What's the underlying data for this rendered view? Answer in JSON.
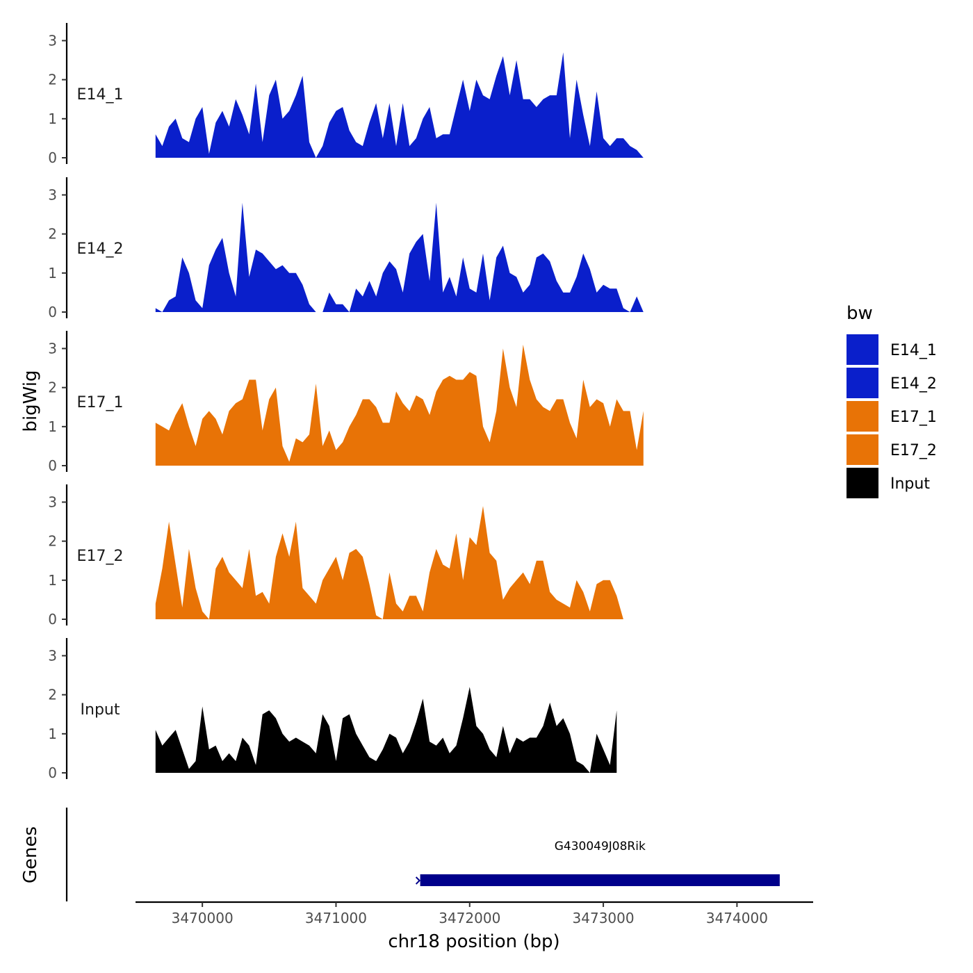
{
  "chart_data": {
    "type": "area",
    "title": "",
    "xlabel": "chr18 position (bp)",
    "ylabel": "bigWig",
    "genes_label": "Genes",
    "xlim": [
      3469500,
      3474570
    ],
    "x_ticks": [
      3470000,
      3471000,
      3472000,
      3473000,
      3474000
    ],
    "x_tick_labels": [
      "3470000",
      "3471000",
      "3472000",
      "3473000",
      "3474000"
    ],
    "ylim": [
      0,
      3.4
    ],
    "y_ticks": [
      0,
      1,
      2,
      3
    ],
    "y_tick_labels": [
      "0",
      "1",
      "2",
      "3"
    ],
    "x_step": 50,
    "x_start": 3469650,
    "legend": {
      "title": "bw",
      "position": "right",
      "entries": [
        {
          "name": "E14_1",
          "color": "#0A1FCB"
        },
        {
          "name": "E14_2",
          "color": "#0A1FCB"
        },
        {
          "name": "E17_1",
          "color": "#E87306"
        },
        {
          "name": "E17_2",
          "color": "#E87306"
        },
        {
          "name": "Input",
          "color": "#000000"
        }
      ]
    },
    "series": [
      {
        "name": "E14_1",
        "color": "#0A1FCB",
        "values": [
          0.6,
          0.3,
          0.8,
          1.0,
          0.5,
          0.4,
          1.0,
          1.3,
          0.1,
          0.9,
          1.2,
          0.8,
          1.5,
          1.1,
          0.6,
          1.9,
          0.4,
          1.6,
          2.0,
          1.0,
          1.2,
          1.6,
          2.1,
          0.4,
          0.0,
          0.3,
          0.9,
          1.2,
          1.3,
          0.7,
          0.4,
          0.3,
          0.9,
          1.4,
          0.5,
          1.4,
          0.3,
          1.4,
          0.3,
          0.5,
          1.0,
          1.3,
          0.5,
          0.6,
          0.6,
          1.3,
          2.0,
          1.2,
          2.0,
          1.6,
          1.5,
          2.1,
          2.6,
          1.6,
          2.5,
          1.5,
          1.5,
          1.3,
          1.5,
          1.6,
          1.6,
          2.7,
          0.5,
          2.0,
          1.1,
          0.3,
          1.7,
          0.5,
          0.3,
          0.5,
          0.5,
          0.3,
          0.2,
          0.0
        ],
        "note": "estimated from sampled curve"
      },
      {
        "name": "E14_2",
        "color": "#0A1FCB",
        "values": [
          0.1,
          0.0,
          0.3,
          0.4,
          1.4,
          1.0,
          0.3,
          0.1,
          1.2,
          1.6,
          1.9,
          1.0,
          0.4,
          2.8,
          0.9,
          1.6,
          1.5,
          1.3,
          1.1,
          1.2,
          1.0,
          1.0,
          0.7,
          0.2,
          0.0,
          0.0,
          0.5,
          0.2,
          0.2,
          0.0,
          0.6,
          0.4,
          0.8,
          0.4,
          1.0,
          1.3,
          1.1,
          0.5,
          1.5,
          1.8,
          2.0,
          0.8,
          2.8,
          0.5,
          0.9,
          0.4,
          1.4,
          0.6,
          0.5,
          1.5,
          0.3,
          1.4,
          1.7,
          1.0,
          0.9,
          0.5,
          0.7,
          1.4,
          1.5,
          1.3,
          0.8,
          0.5,
          0.5,
          0.9,
          1.5,
          1.1,
          0.5,
          0.7,
          0.6,
          0.6,
          0.1,
          0.0,
          0.4,
          0.0
        ],
        "note": "estimated from sampled curve"
      },
      {
        "name": "E17_1",
        "color": "#E87306",
        "values": [
          1.1,
          1.0,
          0.9,
          1.3,
          1.6,
          1.0,
          0.5,
          1.2,
          1.4,
          1.2,
          0.8,
          1.4,
          1.6,
          1.7,
          2.2,
          2.2,
          0.9,
          1.7,
          2.0,
          0.5,
          0.1,
          0.7,
          0.6,
          0.8,
          2.1,
          0.5,
          0.9,
          0.4,
          0.6,
          1.0,
          1.3,
          1.7,
          1.7,
          1.5,
          1.1,
          1.1,
          1.9,
          1.6,
          1.4,
          1.8,
          1.7,
          1.3,
          1.9,
          2.2,
          2.3,
          2.2,
          2.2,
          2.4,
          2.3,
          1.0,
          0.6,
          1.4,
          3.0,
          2.0,
          1.5,
          3.1,
          2.2,
          1.7,
          1.5,
          1.4,
          1.7,
          1.7,
          1.1,
          0.7,
          2.2,
          1.5,
          1.7,
          1.6,
          1.0,
          1.7,
          1.4,
          1.4,
          0.4,
          1.4
        ],
        "note": "estimated from sampled curve"
      },
      {
        "name": "E17_2",
        "color": "#E87306",
        "values": [
          0.4,
          1.3,
          2.5,
          1.4,
          0.3,
          1.8,
          0.8,
          0.2,
          0.0,
          1.3,
          1.6,
          1.2,
          1.0,
          0.8,
          1.8,
          0.6,
          0.7,
          0.4,
          1.6,
          2.2,
          1.6,
          2.5,
          0.8,
          0.6,
          0.4,
          1.0,
          1.3,
          1.6,
          1.0,
          1.7,
          1.8,
          1.6,
          0.9,
          0.1,
          0.0,
          1.2,
          0.4,
          0.2,
          0.6,
          0.6,
          0.2,
          1.2,
          1.8,
          1.4,
          1.3,
          2.2,
          1.0,
          2.1,
          1.9,
          2.9,
          1.7,
          1.5,
          0.5,
          0.8,
          1.0,
          1.2,
          0.9,
          1.5,
          1.5,
          0.7,
          0.5,
          0.4,
          0.3,
          1.0,
          0.7,
          0.2,
          0.9,
          1.0,
          1.0,
          0.6,
          0.0
        ]
      },
      {
        "name": "Input",
        "color": "#000000",
        "values": [
          1.1,
          0.7,
          0.9,
          1.1,
          0.6,
          0.1,
          0.3,
          1.7,
          0.6,
          0.7,
          0.3,
          0.5,
          0.3,
          0.9,
          0.7,
          0.2,
          1.5,
          1.6,
          1.4,
          1.0,
          0.8,
          0.9,
          0.8,
          0.7,
          0.5,
          1.5,
          1.2,
          0.3,
          1.4,
          1.5,
          1.0,
          0.7,
          0.4,
          0.3,
          0.6,
          1.0,
          0.9,
          0.5,
          0.8,
          1.3,
          1.9,
          0.8,
          0.7,
          0.9,
          0.5,
          0.7,
          1.4,
          2.2,
          1.2,
          1.0,
          0.6,
          0.4,
          1.2,
          0.5,
          0.9,
          0.8,
          0.9,
          0.9,
          1.2,
          1.8,
          1.2,
          1.4,
          1.0,
          0.3,
          0.2,
          0.0,
          1.0,
          0.6,
          0.2,
          1.6
        ]
      }
    ],
    "genes": [
      {
        "name": "G430049J08Rik",
        "start": 3471630,
        "end": 3474320,
        "color": "#00008B"
      }
    ]
  }
}
